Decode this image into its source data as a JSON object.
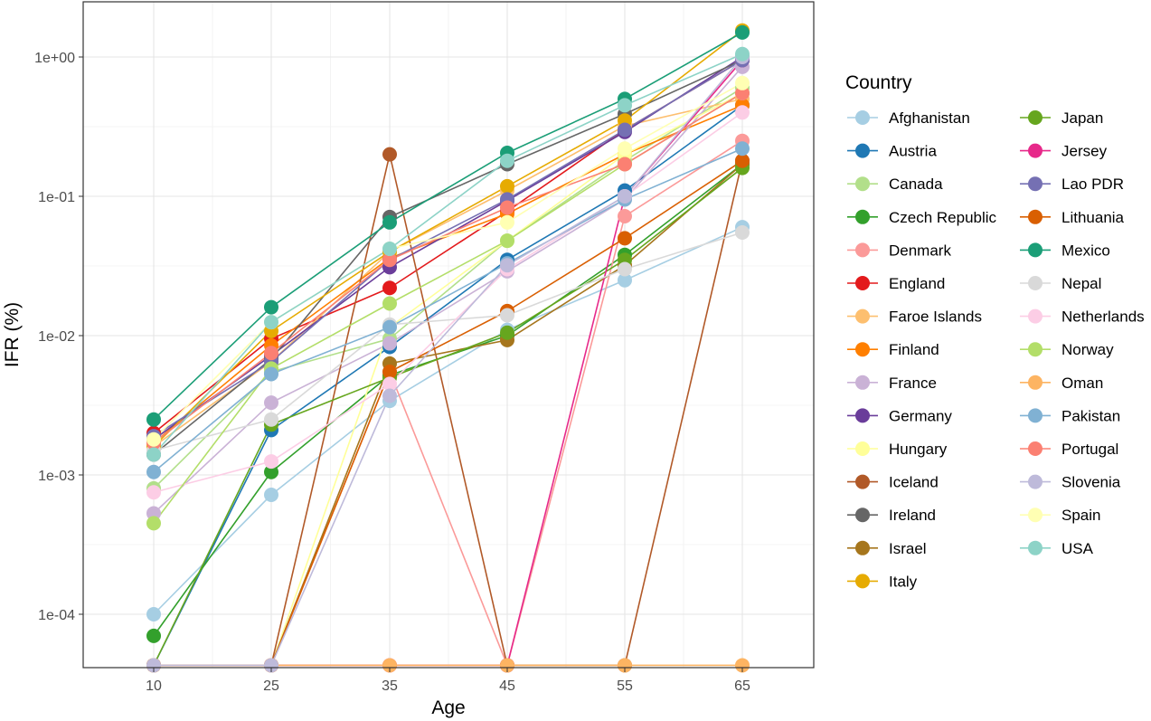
{
  "chart_data": {
    "type": "line",
    "xlabel": "Age",
    "ylabel": "IFR (%)",
    "y_scale": "log",
    "ylim": [
      4.5e-05,
      2.0
    ],
    "x_categories": [
      "10",
      "25",
      "35",
      "45",
      "55",
      "65"
    ],
    "y_ticks": [
      {
        "value": 1,
        "label": "1e+00"
      },
      {
        "value": 0.1,
        "label": "1e-01"
      },
      {
        "value": 0.01,
        "label": "1e-02"
      },
      {
        "value": 0.001,
        "label": "1e-03"
      },
      {
        "value": 0.0001,
        "label": "1e-04"
      }
    ],
    "grid": true,
    "legend": {
      "title": "Country",
      "placement": "right",
      "columns": 2
    },
    "series": [
      {
        "name": "Afghanistan",
        "color": "#a6cee3",
        "values": [
          0.0001,
          0.00072,
          0.0034,
          0.011,
          0.025,
          0.06
        ]
      },
      {
        "name": "Austria",
        "color": "#1f78b4",
        "values": [
          4.3e-05,
          0.0021,
          0.0083,
          0.035,
          0.11,
          0.45
        ]
      },
      {
        "name": "Canada",
        "color": "#b2df8a",
        "values": [
          0.0008,
          0.0055,
          0.0095,
          0.048,
          0.18,
          0.6
        ]
      },
      {
        "name": "Czech Republic",
        "color": "#33a02c",
        "values": [
          7e-05,
          0.00105,
          0.0052,
          0.01,
          0.038,
          0.17
        ]
      },
      {
        "name": "Denmark",
        "color": "#fb9a99",
        "values": [
          4.3e-05,
          4.3e-05,
          0.0055,
          4.3e-05,
          0.072,
          0.25
        ]
      },
      {
        "name": "England",
        "color": "#e31a1c",
        "values": [
          0.002,
          0.0095,
          0.022,
          0.078,
          0.3,
          0.95
        ]
      },
      {
        "name": "Faroe Islands",
        "color": "#fdbf6f",
        "values": [
          0.0016,
          0.0065,
          0.04,
          0.11,
          0.32,
          0.5
        ]
      },
      {
        "name": "Finland",
        "color": "#ff7f00",
        "values": [
          0.0017,
          0.0085,
          0.036,
          0.075,
          0.2,
          0.45
        ]
      },
      {
        "name": "France",
        "color": "#cab2d6",
        "values": [
          0.00053,
          0.0033,
          0.0088,
          0.029,
          0.095,
          0.85
        ]
      },
      {
        "name": "Germany",
        "color": "#6a3d9a",
        "values": [
          0.0018,
          0.0072,
          0.031,
          0.093,
          0.29,
          1.0
        ]
      },
      {
        "name": "Hungary",
        "color": "#ffff99",
        "values": [
          4.3e-05,
          4.3e-05,
          0.0115,
          0.048,
          0.2,
          0.55
        ]
      },
      {
        "name": "Iceland",
        "color": "#b15928",
        "values": [
          4.3e-05,
          4.3e-05,
          0.2,
          4.3e-05,
          4.3e-05,
          0.18
        ]
      },
      {
        "name": "Ireland",
        "color": "#666666",
        "values": [
          0.0014,
          0.0068,
          0.071,
          0.17,
          0.39,
          0.95
        ]
      },
      {
        "name": "Israel",
        "color": "#a6761d",
        "values": [
          4.3e-05,
          4.3e-05,
          0.0063,
          0.0093,
          0.032,
          0.17
        ]
      },
      {
        "name": "Italy",
        "color": "#e6ab02",
        "values": [
          0.0016,
          0.0108,
          0.04,
          0.118,
          0.35,
          1.55
        ]
      },
      {
        "name": "Japan",
        "color": "#66a61e",
        "values": [
          4.3e-05,
          0.0023,
          0.005,
          0.0105,
          0.035,
          0.16
        ]
      },
      {
        "name": "Jersey",
        "color": "#e7298a",
        "values": [
          4.3e-05,
          4.3e-05,
          4.3e-05,
          4.3e-05,
          0.1,
          0.95
        ]
      },
      {
        "name": "Lao PDR",
        "color": "#7570b3",
        "values": [
          0.0019,
          0.0065,
          0.035,
          0.095,
          0.3,
          0.95
        ]
      },
      {
        "name": "Lithuania",
        "color": "#d95f02",
        "values": [
          4.3e-05,
          4.3e-05,
          0.0055,
          0.015,
          0.05,
          0.18
        ]
      },
      {
        "name": "Mexico",
        "color": "#1b9e77",
        "values": [
          0.0025,
          0.016,
          0.065,
          0.205,
          0.5,
          1.5
        ]
      },
      {
        "name": "Nepal",
        "color": "#d9d9d9",
        "values": [
          0.0015,
          0.0025,
          0.012,
          0.014,
          0.03,
          0.055
        ]
      },
      {
        "name": "Netherlands",
        "color": "#fccde5",
        "values": [
          0.00075,
          0.00125,
          0.0045,
          0.03,
          0.1,
          0.4
        ]
      },
      {
        "name": "Norway",
        "color": "#b3de69",
        "values": [
          0.00045,
          0.0058,
          0.017,
          0.048,
          0.17,
          0.55
        ]
      },
      {
        "name": "Oman",
        "color": "#fdb462",
        "values": [
          4.3e-05,
          4.3e-05,
          4.3e-05,
          4.3e-05,
          4.3e-05,
          4.3e-05
        ]
      },
      {
        "name": "Pakistan",
        "color": "#80b1d3",
        "values": [
          0.00105,
          0.0053,
          0.0115,
          0.033,
          0.095,
          0.22
        ]
      },
      {
        "name": "Portugal",
        "color": "#fb8072",
        "values": [
          0.0017,
          0.0075,
          0.035,
          0.083,
          0.17,
          0.55
        ]
      },
      {
        "name": "Slovenia",
        "color": "#bebada",
        "values": [
          4.3e-05,
          4.3e-05,
          0.0037,
          0.032,
          0.1,
          1.0
        ]
      },
      {
        "name": "Spain",
        "color": "#ffffb3",
        "values": [
          0.0018,
          0.0125,
          0.042,
          0.065,
          0.22,
          0.65
        ]
      },
      {
        "name": "USA",
        "color": "#8dd3c7",
        "values": [
          0.0014,
          0.0125,
          0.042,
          0.18,
          0.45,
          1.05
        ]
      }
    ]
  }
}
